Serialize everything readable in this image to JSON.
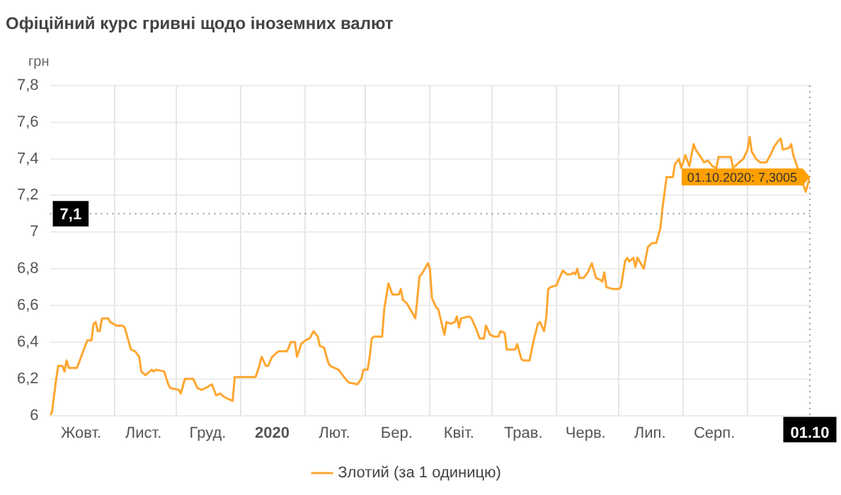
{
  "chart_data": {
    "type": "line",
    "title": "Офіційний курс гривні щодо іноземних валют",
    "ylabel": "грн",
    "xlim": [
      "2019-10-01",
      "2020-10-01"
    ],
    "xticks": [
      {
        "value": "2019-10-16",
        "label": "Жовт."
      },
      {
        "value": "2019-11-01",
        "label": null
      },
      {
        "value": "2019-11-15",
        "label": "Лист."
      },
      {
        "value": "2019-12-01",
        "label": null
      },
      {
        "value": "2019-12-16",
        "label": "Груд."
      },
      {
        "value": "2020-01-01",
        "label": null
      },
      {
        "value": "2020-01-16",
        "label": "2020"
      },
      {
        "value": "2020-02-01",
        "label": null
      },
      {
        "value": "2020-02-15",
        "label": "Лют."
      },
      {
        "value": "2020-03-01",
        "label": null
      },
      {
        "value": "2020-03-16",
        "label": "Бер."
      },
      {
        "value": "2020-04-01",
        "label": null
      },
      {
        "value": "2020-04-15",
        "label": "Квіт."
      },
      {
        "value": "2020-05-01",
        "label": null
      },
      {
        "value": "2020-05-16",
        "label": "Трав."
      },
      {
        "value": "2020-06-01",
        "label": null
      },
      {
        "value": "2020-06-15",
        "label": "Черв."
      },
      {
        "value": "2020-07-01",
        "label": null
      },
      {
        "value": "2020-07-16",
        "label": "Лип."
      },
      {
        "value": "2020-08-01",
        "label": null
      },
      {
        "value": "2020-08-16",
        "label": "Серп."
      },
      {
        "value": "2020-09-01",
        "label": null
      },
      {
        "value": "2020-10-01",
        "label": "01.10"
      }
    ],
    "ylim": [
      6,
      7.8
    ],
    "yticks": [
      {
        "value": 6,
        "label": "6"
      },
      {
        "value": 6.2,
        "label": "6,2"
      },
      {
        "value": 6.4,
        "label": "6,4"
      },
      {
        "value": 6.6,
        "label": "6,6"
      },
      {
        "value": 6.8,
        "label": "6,8"
      },
      {
        "value": 7,
        "label": "7"
      },
      {
        "value": 7.2,
        "label": "7,2"
      },
      {
        "value": 7.4,
        "label": "7,4"
      },
      {
        "value": 7.6,
        "label": "7,6"
      },
      {
        "value": 7.8,
        "label": "7,8"
      }
    ],
    "grid": true,
    "legend": "bottom",
    "marker": "none",
    "line_style": "solid",
    "ref_lines": [
      {
        "axis": "y",
        "value": 7.1,
        "label": "7,1",
        "line_style": "dotted"
      },
      {
        "axis": "x",
        "value": "2020-10-01",
        "line_style": "dotted"
      }
    ],
    "annotations": [
      {
        "text": "01.10.2020: 7,3005",
        "x": "2020-10-01",
        "y": 7.3005
      }
    ],
    "series": [
      {
        "name": "Злотий (за 1 одиницю)",
        "color": "#ffa630",
        "x": [
          "2019-10-01",
          "2019-10-02",
          "2019-10-04",
          "2019-10-05",
          "2019-10-07",
          "2019-10-08",
          "2019-10-09",
          "2019-10-10",
          "2019-10-14",
          "2019-10-17",
          "2019-10-19",
          "2019-10-21",
          "2019-10-22",
          "2019-10-23",
          "2019-10-24",
          "2019-10-25",
          "2019-10-26",
          "2019-10-29",
          "2019-10-30",
          "2019-11-02",
          "2019-11-05",
          "2019-11-06",
          "2019-11-09",
          "2019-11-11",
          "2019-11-13",
          "2019-11-14",
          "2019-11-16",
          "2019-11-18",
          "2019-11-19",
          "2019-11-20",
          "2019-11-21",
          "2019-11-25",
          "2019-11-27",
          "2019-11-28",
          "2019-12-02",
          "2019-12-03",
          "2019-12-05",
          "2019-12-09",
          "2019-12-11",
          "2019-12-13",
          "2019-12-15",
          "2019-12-18",
          "2019-12-20",
          "2019-12-22",
          "2019-12-24",
          "2019-12-26",
          "2019-12-28",
          "2019-12-29",
          "2020-01-08",
          "2020-01-09",
          "2020-01-11",
          "2020-01-13",
          "2020-01-14",
          "2020-01-16",
          "2020-01-19",
          "2020-01-23",
          "2020-01-24",
          "2020-01-25",
          "2020-01-27",
          "2020-01-28",
          "2020-01-30",
          "2020-02-01",
          "2020-02-03",
          "2020-02-05",
          "2020-02-07",
          "2020-02-08",
          "2020-02-10",
          "2020-02-12",
          "2020-02-13",
          "2020-02-15",
          "2020-02-17",
          "2020-02-19",
          "2020-02-21",
          "2020-02-22",
          "2020-02-26",
          "2020-02-28",
          "2020-02-29",
          "2020-03-02",
          "2020-03-03",
          "2020-03-04",
          "2020-03-05",
          "2020-03-09",
          "2020-03-10",
          "2020-03-12",
          "2020-03-14",
          "2020-03-17",
          "2020-03-18",
          "2020-03-19",
          "2020-03-21",
          "2020-03-24",
          "2020-03-25",
          "2020-03-27",
          "2020-03-28",
          "2020-03-31",
          "2020-04-01",
          "2020-04-02",
          "2020-04-04",
          "2020-04-05",
          "2020-04-08",
          "2020-04-09",
          "2020-04-11",
          "2020-04-13",
          "2020-04-14",
          "2020-04-15",
          "2020-04-16",
          "2020-04-20",
          "2020-04-21",
          "2020-04-23",
          "2020-04-25",
          "2020-04-27",
          "2020-04-28",
          "2020-04-30",
          "2020-05-02",
          "2020-05-04",
          "2020-05-05",
          "2020-05-07",
          "2020-05-08",
          "2020-05-10",
          "2020-05-12",
          "2020-05-13",
          "2020-05-15",
          "2020-05-16",
          "2020-05-19",
          "2020-05-21",
          "2020-05-23",
          "2020-05-24",
          "2020-05-26",
          "2020-05-27",
          "2020-05-28",
          "2020-05-29",
          "2020-06-01",
          "2020-06-02",
          "2020-06-04",
          "2020-06-06",
          "2020-06-08",
          "2020-06-09",
          "2020-06-10",
          "2020-06-11",
          "2020-06-12",
          "2020-06-14",
          "2020-06-16",
          "2020-06-18",
          "2020-06-20",
          "2020-06-22",
          "2020-06-23",
          "2020-06-24",
          "2020-06-25",
          "2020-06-28",
          "2020-07-01",
          "2020-07-02",
          "2020-07-04",
          "2020-07-05",
          "2020-07-06",
          "2020-07-08",
          "2020-07-09",
          "2020-07-10",
          "2020-07-11",
          "2020-07-13",
          "2020-07-14",
          "2020-07-15",
          "2020-07-17",
          "2020-07-19",
          "2020-07-21",
          "2020-07-22",
          "2020-07-24",
          "2020-07-27",
          "2020-07-28",
          "2020-07-30",
          "2020-07-31",
          "2020-08-01",
          "2020-08-02",
          "2020-08-04",
          "2020-08-06",
          "2020-08-07",
          "2020-08-10",
          "2020-08-11",
          "2020-08-13",
          "2020-08-15",
          "2020-08-17",
          "2020-08-18",
          "2020-08-21",
          "2020-08-24",
          "2020-08-25",
          "2020-08-28",
          "2020-08-30",
          "2020-09-01",
          "2020-09-02",
          "2020-09-03",
          "2020-09-05",
          "2020-09-07",
          "2020-09-10",
          "2020-09-12",
          "2020-09-14",
          "2020-09-16",
          "2020-09-17",
          "2020-09-18",
          "2020-09-21",
          "2020-09-22",
          "2020-09-23",
          "2020-09-29",
          "2020-10-01"
        ],
        "values": [
          6.0,
          6.02,
          6.2,
          6.27,
          6.27,
          6.24,
          6.3,
          6.26,
          6.26,
          6.35,
          6.41,
          6.41,
          6.5,
          6.51,
          6.46,
          6.46,
          6.53,
          6.53,
          6.51,
          6.49,
          6.49,
          6.48,
          6.36,
          6.35,
          6.32,
          6.24,
          6.22,
          6.24,
          6.25,
          6.24,
          6.25,
          6.24,
          6.17,
          6.15,
          6.14,
          6.12,
          6.2,
          6.2,
          6.15,
          6.14,
          6.15,
          6.17,
          6.11,
          6.12,
          6.1,
          6.09,
          6.08,
          6.21,
          6.21,
          6.24,
          6.32,
          6.27,
          6.27,
          6.32,
          6.35,
          6.35,
          6.37,
          6.4,
          6.4,
          6.32,
          6.39,
          6.41,
          6.42,
          6.46,
          6.43,
          6.38,
          6.37,
          6.29,
          6.27,
          6.26,
          6.25,
          6.22,
          6.19,
          6.18,
          6.17,
          6.2,
          6.25,
          6.25,
          6.32,
          6.42,
          6.43,
          6.43,
          6.58,
          6.72,
          6.66,
          6.66,
          6.69,
          6.63,
          6.61,
          6.55,
          6.53,
          6.76,
          6.77,
          6.83,
          6.8,
          6.64,
          6.59,
          6.58,
          6.44,
          6.51,
          6.5,
          6.51,
          6.54,
          6.48,
          6.53,
          6.54,
          6.53,
          6.48,
          6.42,
          6.42,
          6.49,
          6.44,
          6.43,
          6.43,
          6.46,
          6.45,
          6.36,
          6.36,
          6.36,
          6.39,
          6.31,
          6.3,
          6.3,
          6.41,
          6.5,
          6.51,
          6.46,
          6.53,
          6.69,
          6.7,
          6.71,
          6.74,
          6.79,
          6.77,
          6.77,
          6.78,
          6.77,
          6.8,
          6.75,
          6.75,
          6.78,
          6.83,
          6.75,
          6.74,
          6.73,
          6.78,
          6.7,
          6.69,
          6.69,
          6.7,
          6.84,
          6.86,
          6.84,
          6.86,
          6.81,
          6.86,
          6.84,
          6.8,
          6.86,
          6.92,
          6.94,
          6.94,
          7.02,
          7.13,
          7.3,
          7.3,
          7.37,
          7.4,
          7.35,
          7.38,
          7.42,
          7.36,
          7.48,
          7.45,
          7.4,
          7.38,
          7.39,
          7.36,
          7.35,
          7.41,
          7.41,
          7.41,
          7.35,
          7.38,
          7.4,
          7.45,
          7.52,
          7.44,
          7.4,
          7.38,
          7.38,
          7.42,
          7.47,
          7.5,
          7.51,
          7.45,
          7.46,
          7.48,
          7.42,
          7.22,
          7.3005
        ]
      }
    ]
  }
}
